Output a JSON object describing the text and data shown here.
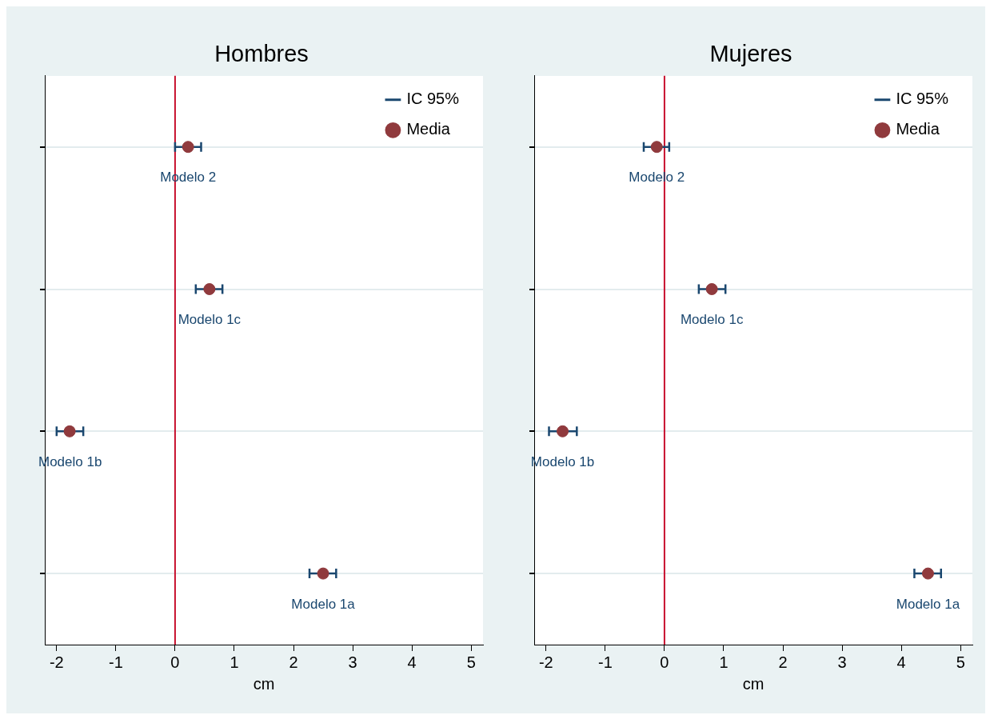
{
  "chart_data": [
    {
      "type": "scatter",
      "title": "Hombres",
      "xlabel": "cm",
      "orientation": "horizontal",
      "categories": [
        "Modelo 2",
        "Modelo 1c",
        "Modelo 1b",
        "Modelo 1a"
      ],
      "series": [
        {
          "name": "Media",
          "color": "#903a3d",
          "values": [
            0.22,
            0.58,
            -1.78,
            2.5
          ],
          "errors": [
            [
              0.0,
              0.44
            ],
            [
              0.35,
              0.8
            ],
            [
              -2.0,
              -1.55
            ],
            [
              2.27,
              2.72
            ]
          ]
        }
      ],
      "xlim": [
        -2.2,
        5.2
      ],
      "xticks": [
        -2,
        -1,
        0,
        1,
        2,
        3,
        4,
        5
      ],
      "ref_lines": [
        {
          "axis": "x",
          "value": 0,
          "color": "#c8102e"
        }
      ],
      "grid": "y",
      "legend": "top right",
      "tick_labels": "x",
      "marker": "circle",
      "annotations": [
        "IC 95%"
      ]
    },
    {
      "type": "scatter",
      "title": "Mujeres",
      "xlabel": "cm",
      "orientation": "horizontal",
      "categories": [
        "Modelo 2",
        "Modelo 1c",
        "Modelo 1b",
        "Modelo 1a"
      ],
      "series": [
        {
          "name": "Media",
          "color": "#903a3d",
          "values": [
            -0.13,
            0.8,
            -1.72,
            4.45
          ],
          "errors": [
            [
              -0.35,
              0.08
            ],
            [
              0.58,
              1.03
            ],
            [
              -1.95,
              -1.48
            ],
            [
              4.22,
              4.67
            ]
          ]
        }
      ],
      "xlim": [
        -2.2,
        5.2
      ],
      "xticks": [
        -2,
        -1,
        0,
        1,
        2,
        3,
        4,
        5
      ],
      "ref_lines": [
        {
          "axis": "x",
          "value": 0,
          "color": "#c8102e"
        }
      ],
      "grid": "y",
      "legend": "top right",
      "tick_labels": "x",
      "marker": "circle",
      "annotations": [
        "IC 95%"
      ]
    }
  ]
}
